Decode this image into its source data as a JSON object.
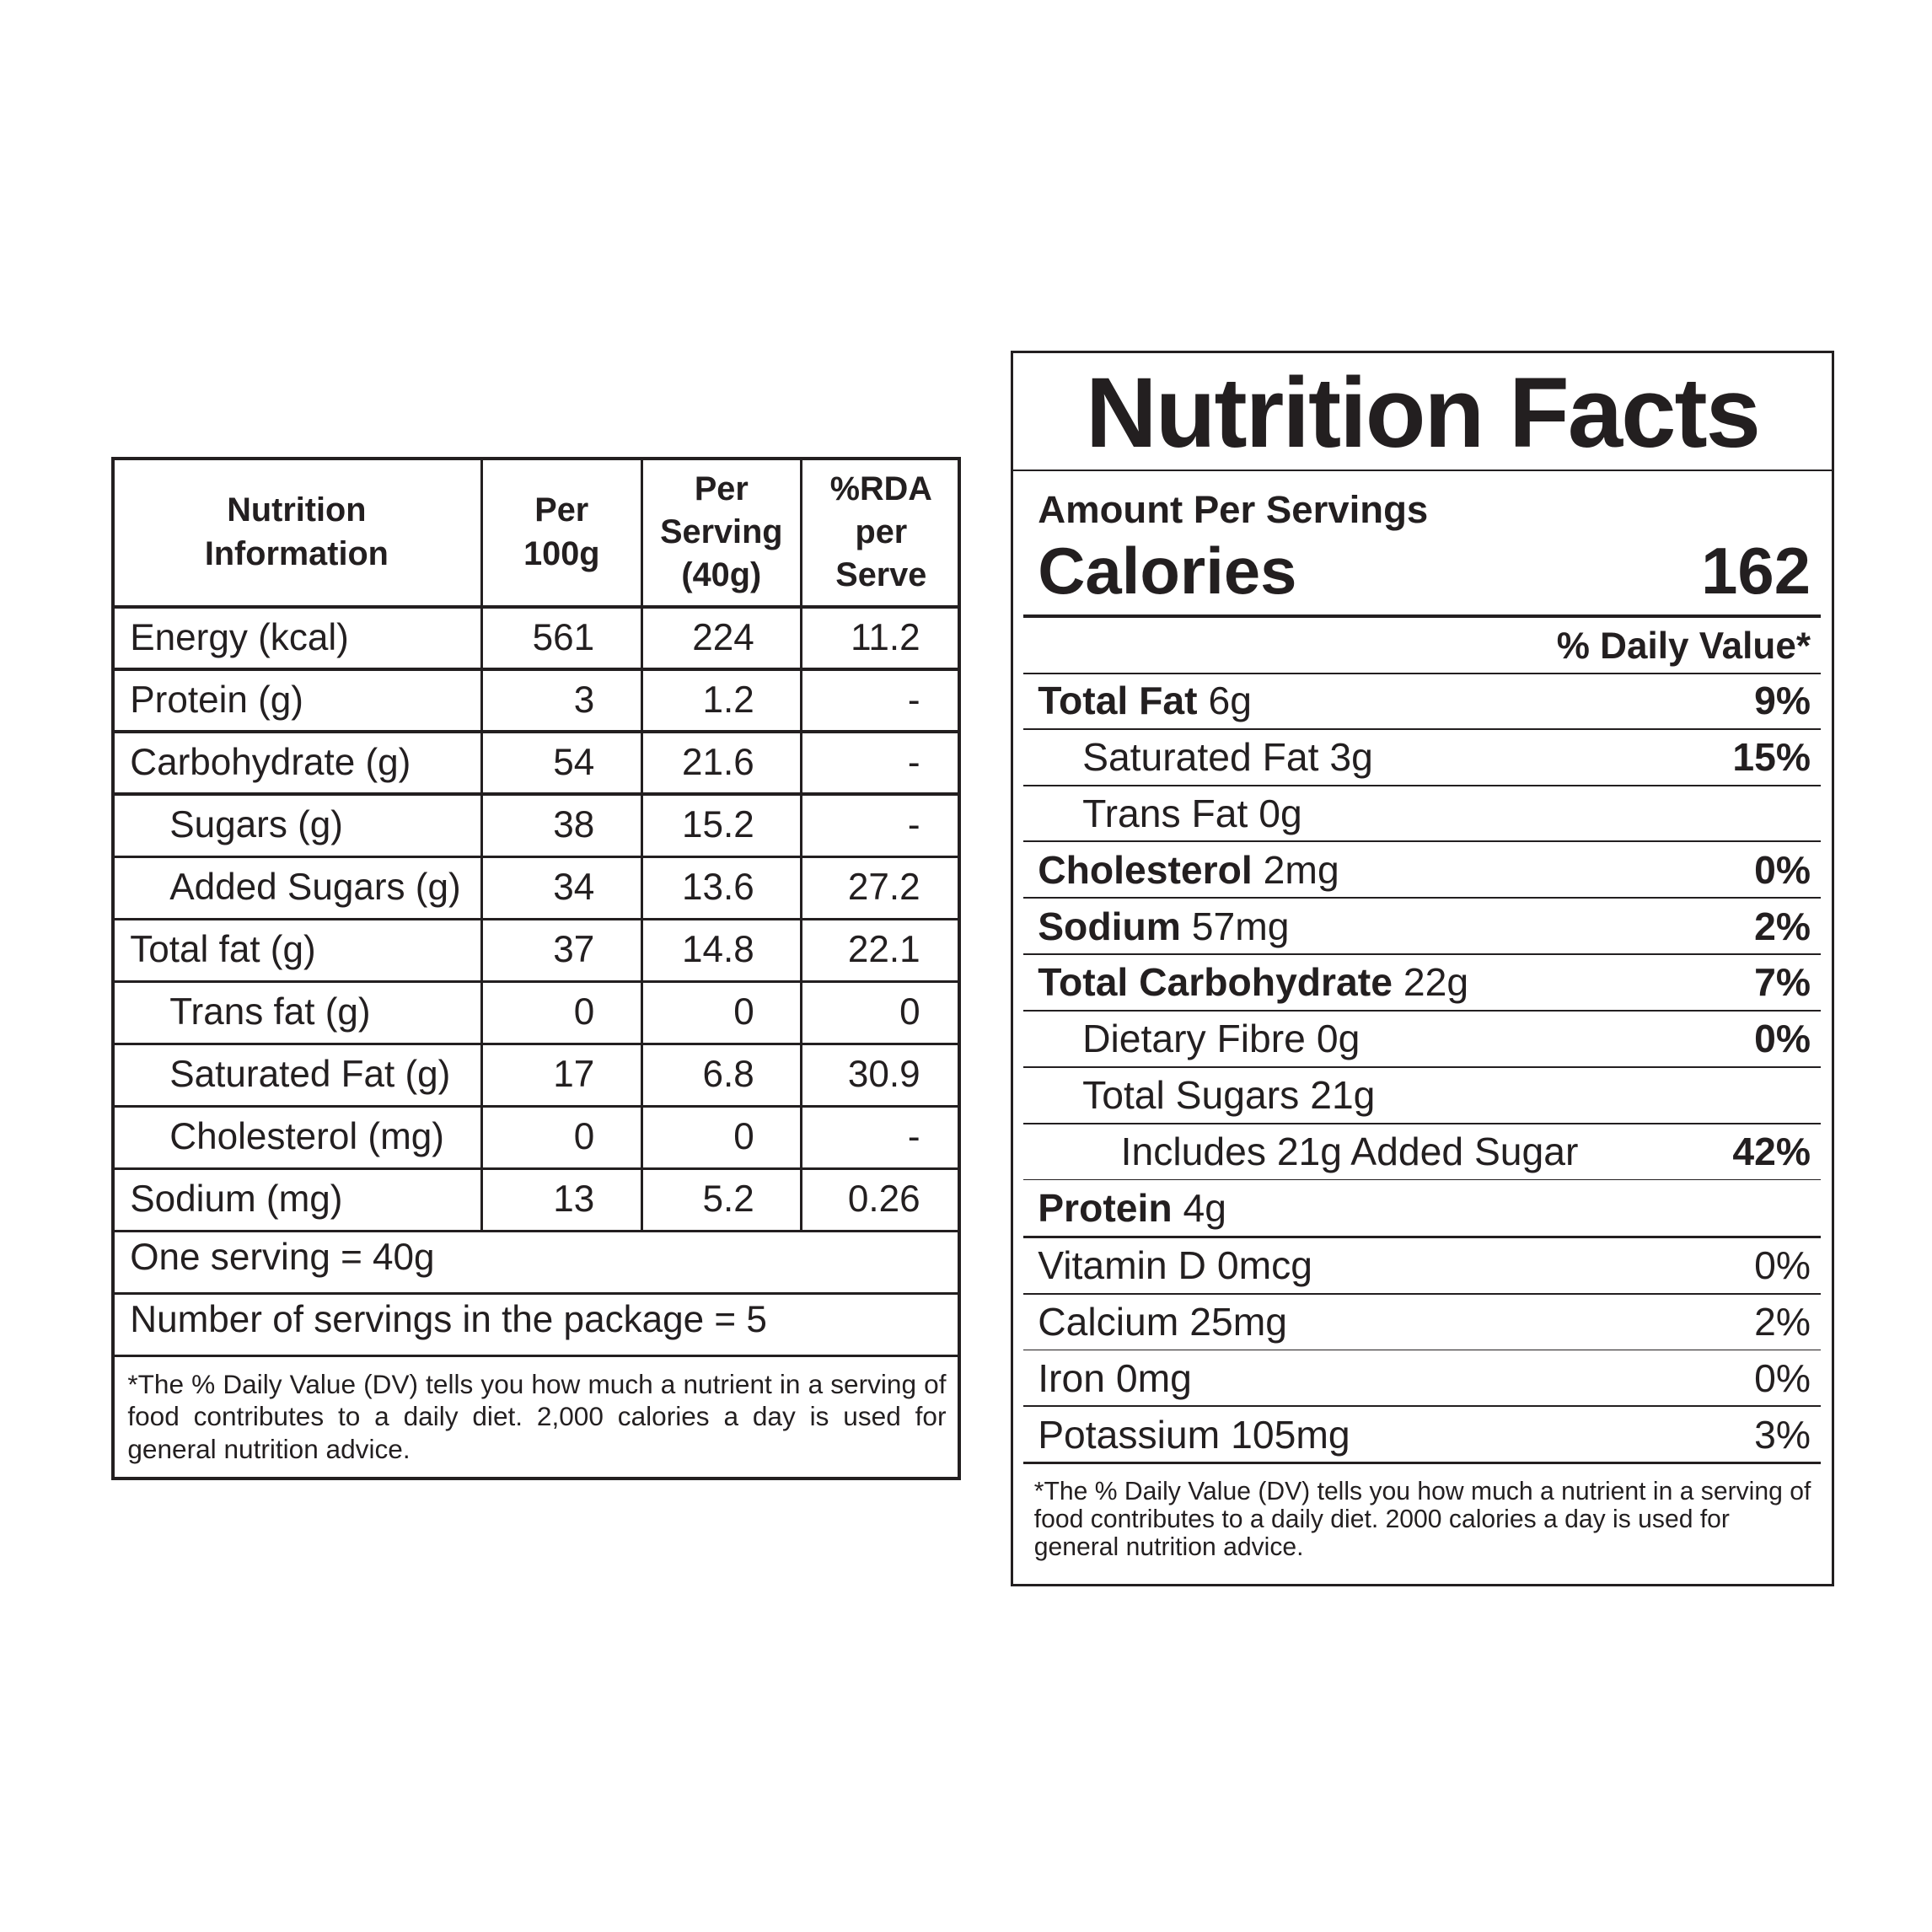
{
  "table": {
    "header": [
      [
        "Nutrition",
        "Information"
      ],
      [
        "Per",
        "100g"
      ],
      [
        "Per",
        "Serving",
        "(40g)"
      ],
      [
        "%RDA",
        "per",
        "Serve"
      ]
    ],
    "rows": [
      {
        "cells": [
          "Energy (kcal)",
          "561",
          "224",
          "11.2"
        ]
      },
      {
        "cells": [
          "Protein (g)",
          "3",
          "1.2",
          "-"
        ]
      },
      {
        "cells": [
          "Carbohydrate (g)",
          "54",
          "21.6",
          "-"
        ],
        "sub": [
          {
            "cells": [
              "Sugars (g)",
              "38",
              "15.2",
              "-"
            ]
          },
          {
            "cells": [
              "Added Sugars (g)",
              "34",
              "13.6",
              "27.2"
            ]
          }
        ]
      },
      {
        "cells": [
          "Total fat (g)",
          "37",
          "14.8",
          "22.1"
        ],
        "sub": [
          {
            "cells": [
              "Trans fat (g)",
              "0",
              "0",
              "0"
            ]
          },
          {
            "cells": [
              "Saturated Fat (g)",
              "17",
              "6.8",
              "30.9"
            ]
          },
          {
            "cells": [
              "Cholesterol (mg)",
              "0",
              "0",
              "-"
            ]
          }
        ]
      },
      {
        "cells": [
          "Sodium (mg)",
          "13",
          "5.2",
          "0.26"
        ]
      }
    ],
    "footer": [
      "One serving = 40g",
      "Number of servings in the package = 5"
    ],
    "note": "*The % Daily Value (DV) tells you how much a nutrient in a serving of food contributes to a daily diet. 2,000 calories a day is used for general nutrition advice."
  },
  "facts": {
    "title": "Nutrition Facts",
    "amount_per": "Amount Per Servings",
    "calories": {
      "label": "Calories",
      "value": "162"
    },
    "dv_header": "% Daily Value*",
    "nutrients": [
      {
        "name": "Total Fat",
        "amount": "6g",
        "dv": "9%",
        "sub": [
          {
            "name": "Saturated Fat",
            "amount": "3g",
            "dv": "15%"
          },
          {
            "name": "Trans Fat",
            "amount": "0g"
          }
        ]
      },
      {
        "name": "Cholesterol",
        "amount": "2mg",
        "dv": "0%"
      },
      {
        "name": "Sodium",
        "amount": "57mg",
        "dv": "2%"
      },
      {
        "name": "Total Carbohydrate",
        "amount": "22g",
        "dv": "7%",
        "sub": [
          {
            "name": "Dietary Fibre",
            "amount": "0g",
            "dv": "0%"
          },
          {
            "name": "Total Sugars",
            "amount": "21g",
            "sub": [
              {
                "name": "Includes 21g Added Sugar",
                "dv": "42%"
              }
            ]
          }
        ]
      },
      {
        "name": "Protein",
        "amount": "4g"
      }
    ],
    "vitamins": [
      {
        "name": "Vitamin D",
        "amount": "0mcg",
        "dv": "0%"
      },
      {
        "name": "Calcium",
        "amount": "25mg",
        "dv": "2%"
      },
      {
        "name": "Iron",
        "amount": "0mg",
        "dv": "0%"
      },
      {
        "name": "Potassium",
        "amount": "105mg",
        "dv": "3%"
      }
    ],
    "note": "*The % Daily Value (DV) tells you how much a nutrient in a serving of food contributes to a daily diet. 2000 calories a day is used for general nutrition advice."
  }
}
